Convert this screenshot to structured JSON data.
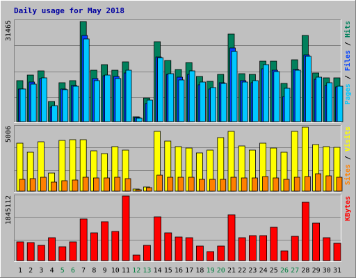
{
  "chart_data": {
    "type": "bar",
    "title": "Daily usage for May 2018",
    "categories": [
      "1",
      "2",
      "3",
      "4",
      "5",
      "6",
      "7",
      "8",
      "9",
      "10",
      "11",
      "12",
      "13",
      "14",
      "15",
      "16",
      "17",
      "18",
      "19",
      "20",
      "21",
      "22",
      "23",
      "24",
      "25",
      "26",
      "27",
      "28",
      "29",
      "30",
      "31"
    ],
    "weekend_days": [
      "5",
      "6",
      "12",
      "13",
      "19",
      "20",
      "26",
      "27"
    ],
    "colors": {
      "background": "#C0C0C0",
      "title": "#0000A0",
      "hits": "#00805C",
      "files": "#0040FF",
      "pages": "#00C8FF",
      "visits": "#FFFF00",
      "sites": "#FF8000",
      "kbytes": "#FF0000",
      "weekday_label": "#000000",
      "weekend_label": "#008040"
    },
    "panels": [
      {
        "id": "requests",
        "ymax": 31465,
        "ymax_label": "31465",
        "legend": [
          "Pages",
          "Files",
          "Hits"
        ],
        "legend_colors": [
          "#00C8FF",
          "#0040FF",
          "#00805C"
        ],
        "series": [
          {
            "name": "Hits",
            "values": [
              12700,
              14500,
              15900,
              6300,
              12200,
              12700,
              31300,
              16000,
              17800,
              16000,
              18600,
              1600,
              7400,
              25000,
              19100,
              16300,
              18500,
              14000,
              12600,
              14700,
              27400,
              15000,
              14800,
              18800,
              18900,
              11900,
              19300,
              26800,
              15200,
              13600,
              13600
            ]
          },
          {
            "name": "Files",
            "values": [
              10300,
              12400,
              13400,
              4500,
              10200,
              11200,
              26900,
              13500,
              14400,
              14000,
              15200,
              1300,
              5700,
              20100,
              14800,
              13900,
              14800,
              11600,
              10300,
              12100,
              23000,
              12700,
              12100,
              16600,
              16000,
              7900,
              16200,
              20900,
              13300,
              11200,
              10900
            ]
          },
          {
            "name": "Pages",
            "values": [
              10300,
              11700,
              13600,
              4900,
              9900,
              11100,
              25800,
              12800,
              14600,
              13500,
              16000,
              1000,
              6800,
              20000,
              14900,
              13100,
              15800,
              12400,
              10700,
              12000,
              22000,
              12400,
              12900,
              17900,
              15600,
              10500,
              16100,
              20500,
              13800,
              12200,
              11000
            ]
          }
        ]
      },
      {
        "id": "visitors",
        "ymax": 5006,
        "ymax_label": "5006",
        "legend": [
          "Sites",
          "Visits"
        ],
        "legend_colors": [
          "#FF8000",
          "#FFFF00"
        ],
        "series": [
          {
            "name": "Visits",
            "values": [
              3700,
              3000,
              3800,
              1400,
              3950,
              4000,
              4000,
              3100,
              2900,
              3450,
              3150,
              140,
              330,
              4650,
              3900,
              3450,
              3350,
              2950,
              3150,
              4150,
              4650,
              3500,
              3150,
              3700,
              3350,
              3000,
              4650,
              4950,
              3600,
              3450,
              3400
            ]
          },
          {
            "name": "Sites",
            "values": [
              930,
              980,
              1050,
              720,
              820,
              880,
              1080,
              1020,
              1020,
              1050,
              980,
              100,
              280,
              1220,
              1100,
              1050,
              1060,
              940,
              930,
              910,
              1060,
              1010,
              1010,
              1130,
              1040,
              930,
              1100,
              1150,
              1330,
              1200,
              1050
            ]
          }
        ]
      },
      {
        "id": "volume",
        "ymax": 1845112,
        "ymax_label": "1845112",
        "legend": [
          "KBytes"
        ],
        "legend_colors": [
          "#FF0000"
        ],
        "series": [
          {
            "name": "KBytes",
            "values": [
              530000,
              510000,
              430000,
              660000,
              400000,
              530000,
              1190000,
              800000,
              1110000,
              835000,
              1840000,
              150000,
              440000,
              1250000,
              790000,
              680000,
              660000,
              410000,
              250000,
              420000,
              1300000,
              650000,
              720000,
              720000,
              950000,
              285000,
              690000,
              1660000,
              1080000,
              650000,
              490000
            ]
          }
        ]
      }
    ]
  }
}
